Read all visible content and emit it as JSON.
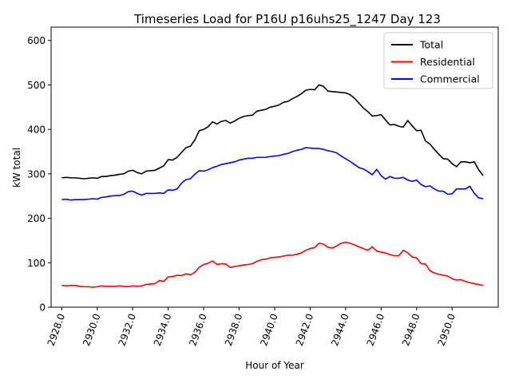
{
  "chart_data": {
    "type": "line",
    "title": "Timeseries Load for P16U p16uhs25_1247  Day 123",
    "xlabel": "Hour of Year",
    "ylabel": "kW total",
    "xlim": [
      2927.4,
      2952.6
    ],
    "ylim": [
      0,
      630
    ],
    "xticks": [
      2928,
      2930,
      2932,
      2934,
      2936,
      2938,
      2940,
      2942,
      2944,
      2946,
      2948,
      2950
    ],
    "xtick_labels": [
      "2928.0",
      "2930.0",
      "2932.0",
      "2934.0",
      "2936.0",
      "2938.0",
      "2940.0",
      "2942.0",
      "2944.0",
      "2946.0",
      "2948.0",
      "2950.0"
    ],
    "yticks": [
      0,
      100,
      200,
      300,
      400,
      500,
      600
    ],
    "ytick_labels": [
      "0",
      "100",
      "200",
      "300",
      "400",
      "500",
      "600"
    ],
    "grid": false,
    "legend_position": "top-right",
    "x_start": 2928.0,
    "x_step": 0.25,
    "series": [
      {
        "name": "Total",
        "color": "#000000",
        "values": [
          291,
          292,
          291,
          291,
          290,
          289,
          290,
          291,
          290,
          294,
          294,
          296,
          297,
          299,
          300,
          306,
          308,
          303,
          300,
          306,
          307,
          308,
          313,
          318,
          332,
          331,
          337,
          348,
          359,
          362,
          376,
          397,
          400,
          406,
          417,
          412,
          418,
          420,
          414,
          419,
          425,
          429,
          431,
          432,
          441,
          443,
          445,
          450,
          452,
          455,
          461,
          463,
          469,
          474,
          480,
          488,
          490,
          489,
          500,
          497,
          486,
          485,
          484,
          483,
          482,
          478,
          470,
          459,
          448,
          440,
          430,
          431,
          433,
          421,
          410,
          411,
          407,
          405,
          420,
          408,
          397,
          398,
          374,
          367,
          355,
          344,
          334,
          333,
          323,
          316,
          327,
          327,
          325,
          327,
          309,
          296
        ]
      },
      {
        "name": "Residential",
        "color": "#ff0000",
        "values": [
          49,
          48,
          49,
          49,
          47,
          46,
          46,
          45,
          46,
          48,
          47,
          47,
          47,
          48,
          47,
          46,
          48,
          47,
          48,
          51,
          52,
          53,
          60,
          58,
          68,
          69,
          72,
          71,
          75,
          73,
          78,
          90,
          96,
          99,
          104,
          96,
          98,
          97,
          89,
          92,
          93,
          95,
          96,
          98,
          103,
          107,
          108,
          111,
          112,
          113,
          115,
          117,
          117,
          119,
          122,
          128,
          132,
          134,
          144,
          142,
          135,
          133,
          138,
          144,
          146,
          144,
          140,
          136,
          132,
          128,
          136,
          126,
          124,
          122,
          118,
          116,
          116,
          128,
          122,
          113,
          111,
          98,
          97,
          82,
          77,
          74,
          72,
          70,
          64,
          61,
          62,
          58,
          55,
          53,
          51,
          49
        ]
      },
      {
        "name": "Commercial",
        "color": "#0000ff",
        "values": [
          242,
          243,
          241,
          242,
          242,
          242,
          243,
          244,
          243,
          247,
          248,
          250,
          251,
          251,
          254,
          260,
          261,
          256,
          252,
          256,
          256,
          256,
          257,
          256,
          264,
          263,
          266,
          279,
          287,
          289,
          299,
          307,
          306,
          309,
          314,
          317,
          321,
          323,
          325,
          327,
          331,
          333,
          335,
          335,
          337,
          337,
          337,
          339,
          340,
          341,
          344,
          346,
          350,
          353,
          355,
          359,
          358,
          357,
          357,
          355,
          352,
          350,
          347,
          340,
          334,
          328,
          321,
          314,
          311,
          305,
          298,
          310,
          296,
          288,
          294,
          290,
          290,
          292,
          286,
          283,
          286,
          276,
          271,
          273,
          266,
          261,
          261,
          254,
          255,
          266,
          266,
          266,
          272,
          256,
          246,
          244
        ]
      }
    ]
  }
}
